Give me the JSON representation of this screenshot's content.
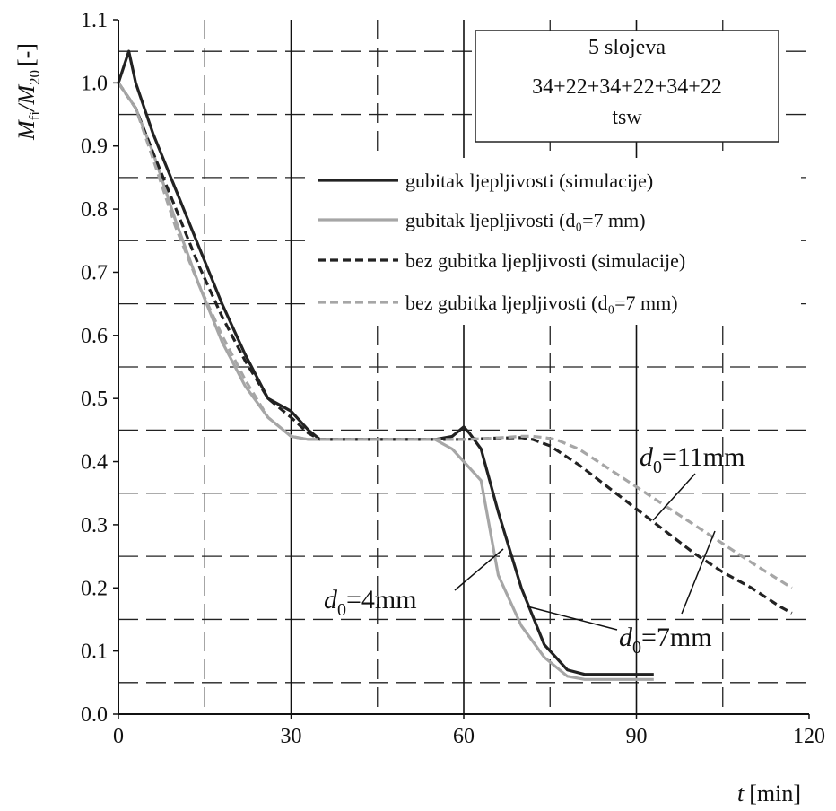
{
  "chart_data": {
    "type": "line",
    "xlabel_var": "t",
    "xlabel_unit": "[min]",
    "ylabel_pre": "M",
    "ylabel_sub1": "fi",
    "ylabel_mid": "/M",
    "ylabel_sub2": "20",
    "ylabel_unit": "[-]",
    "xlim": [
      0,
      120
    ],
    "ylim": [
      0,
      1.1
    ],
    "x_ticks": [
      0,
      30,
      60,
      90,
      120
    ],
    "x_tick_labels": [
      "0",
      "30",
      "60",
      "90",
      "120"
    ],
    "y_ticks": [
      0,
      0.1,
      0.2,
      0.3,
      0.4,
      0.5,
      0.6,
      0.7,
      0.8,
      0.9,
      1.0,
      1.1
    ],
    "y_tick_labels": [
      "0.0",
      "0.1",
      "0.2",
      "0.3",
      "0.4",
      "0.5",
      "0.6",
      "0.7",
      "0.8",
      "0.9",
      "1.0",
      "1.1"
    ],
    "grid": "solid major gridlines every 30 min on x; dashed gridlines at 15-min midpoints on x and 0.05 midpoints on y",
    "info_box": {
      "line1": "5 slojeva",
      "line2": "34+22+34+22+34+22",
      "line3": "tsw"
    },
    "legend_position": "upper-right",
    "series": [
      {
        "name": "gubitak ljepljivosti (simulacije)",
        "color": "#222222",
        "dash": "solid",
        "x": [
          0,
          1.8,
          3,
          6,
          10,
          14,
          18,
          22,
          26,
          30,
          33,
          35,
          40,
          45,
          50,
          55,
          58,
          60,
          61,
          63,
          66,
          70,
          74,
          78,
          81,
          87,
          93
        ],
        "y": [
          1.0,
          1.05,
          1.0,
          0.92,
          0.83,
          0.74,
          0.65,
          0.57,
          0.5,
          0.48,
          0.45,
          0.435,
          0.435,
          0.435,
          0.435,
          0.435,
          0.44,
          0.455,
          0.445,
          0.42,
          0.32,
          0.2,
          0.11,
          0.07,
          0.063,
          0.063,
          0.063
        ]
      },
      {
        "name": "gubitak ljepljivosti (d₀=7 mm)",
        "color": "#a6a6a6",
        "dash": "solid",
        "x": [
          0,
          3,
          6,
          10,
          14,
          18,
          22,
          26,
          30,
          33,
          35,
          40,
          45,
          50,
          55,
          58,
          60,
          63,
          66,
          70,
          74,
          78,
          81,
          87,
          93
        ],
        "y": [
          1.0,
          0.96,
          0.89,
          0.78,
          0.68,
          0.59,
          0.52,
          0.47,
          0.44,
          0.435,
          0.435,
          0.435,
          0.435,
          0.435,
          0.435,
          0.42,
          0.4,
          0.37,
          0.22,
          0.14,
          0.09,
          0.06,
          0.055,
          0.055,
          0.055
        ]
      },
      {
        "name": "bez gubitka ljepljivosti (simulacije)",
        "color": "#222222",
        "dash": "dashed",
        "x": [
          0,
          3,
          6,
          10,
          14,
          18,
          22,
          26,
          30,
          33,
          35,
          40,
          45,
          50,
          55,
          60,
          65,
          70,
          72,
          75,
          80,
          85,
          90,
          95,
          100,
          105,
          110,
          115,
          117
        ],
        "y": [
          1.0,
          0.96,
          0.89,
          0.8,
          0.71,
          0.63,
          0.56,
          0.5,
          0.47,
          0.445,
          0.435,
          0.435,
          0.435,
          0.435,
          0.435,
          0.435,
          0.437,
          0.438,
          0.435,
          0.425,
          0.395,
          0.36,
          0.325,
          0.29,
          0.255,
          0.225,
          0.2,
          0.17,
          0.16
        ]
      },
      {
        "name": "bez gubitka ljepljivosti (d₀=7 mm)",
        "color": "#a6a6a6",
        "dash": "dashed",
        "x": [
          0,
          3,
          6,
          10,
          14,
          18,
          22,
          26,
          30,
          33,
          35,
          40,
          45,
          50,
          55,
          60,
          65,
          70,
          72,
          74,
          76,
          80,
          85,
          90,
          95,
          100,
          105,
          110,
          117
        ],
        "y": [
          1.0,
          0.96,
          0.88,
          0.77,
          0.68,
          0.6,
          0.53,
          0.47,
          0.44,
          0.435,
          0.435,
          0.435,
          0.435,
          0.435,
          0.435,
          0.435,
          0.437,
          0.44,
          0.44,
          0.438,
          0.435,
          0.42,
          0.39,
          0.36,
          0.33,
          0.3,
          0.27,
          0.24,
          0.2
        ]
      }
    ],
    "annotations": [
      {
        "var": "d",
        "sub": "0",
        "rest": "=11mm"
      },
      {
        "var": "d",
        "sub": "0",
        "rest": "=4mm"
      },
      {
        "var": "d",
        "sub": "0",
        "rest": "=7mm"
      }
    ]
  }
}
